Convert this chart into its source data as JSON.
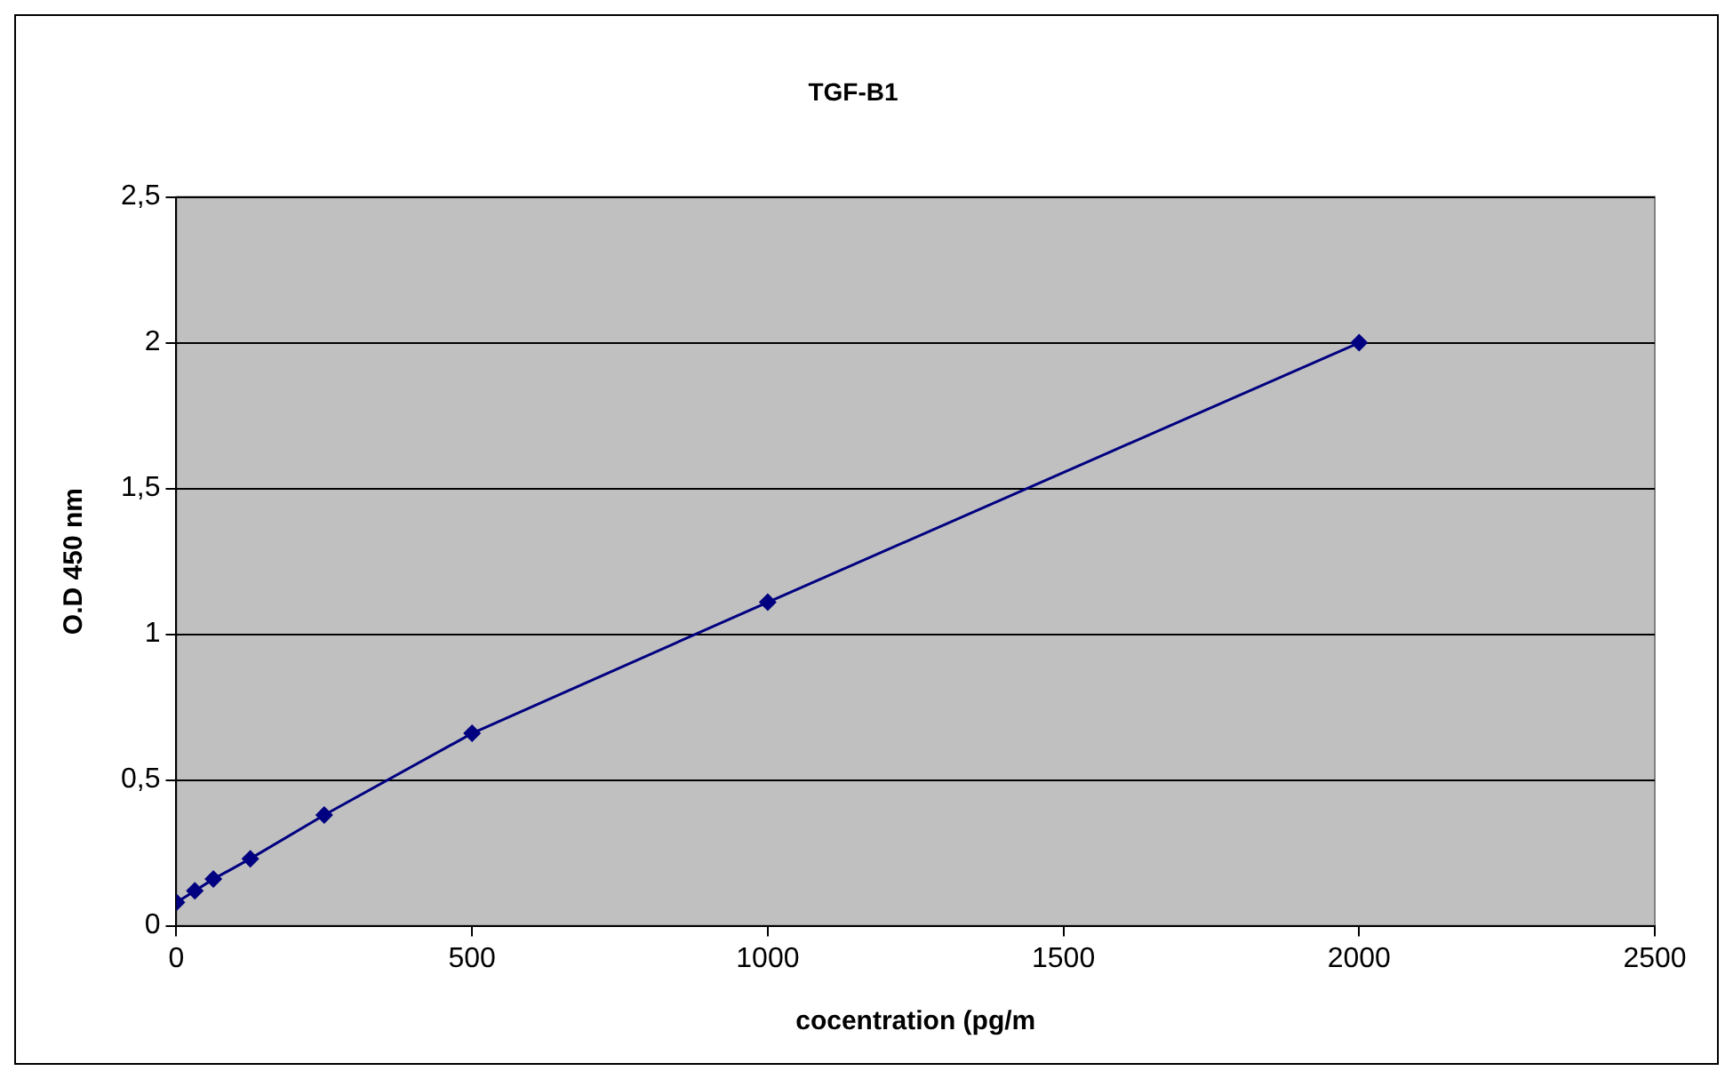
{
  "chart_data": {
    "type": "line",
    "title": "TGF-B1",
    "xlabel": "cocentration (pg/m",
    "ylabel": "O.D 450 nm",
    "x": [
      0,
      31.25,
      62.5,
      125,
      250,
      500,
      1000,
      2000
    ],
    "series": [
      {
        "color": "#000080",
        "values": [
          0.08,
          0.12,
          0.16,
          0.23,
          0.38,
          0.66,
          1.11,
          2.0
        ]
      }
    ],
    "xlim": [
      0,
      2500
    ],
    "xticks": [
      0,
      500,
      1000,
      1500,
      2000,
      2500
    ],
    "ylim": [
      0,
      2.5
    ],
    "yticks": [
      0,
      {
        "value": 0.5,
        "label": "0,5"
      },
      1,
      {
        "value": 1.5,
        "label": "1,5"
      },
      2,
      {
        "value": 2.5,
        "label": "2,5"
      }
    ],
    "grid": "y",
    "legend": false,
    "marker": "diamond",
    "line_style": "solid"
  }
}
